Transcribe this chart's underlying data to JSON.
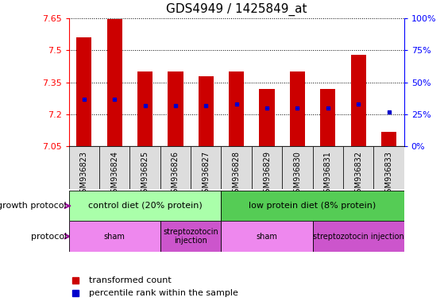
{
  "title": "GDS4949 / 1425849_at",
  "samples": [
    "GSM936823",
    "GSM936824",
    "GSM936825",
    "GSM936826",
    "GSM936827",
    "GSM936828",
    "GSM936829",
    "GSM936830",
    "GSM936831",
    "GSM936832",
    "GSM936833"
  ],
  "bar_top": [
    7.56,
    7.645,
    7.4,
    7.4,
    7.38,
    7.4,
    7.32,
    7.4,
    7.32,
    7.48,
    7.12
  ],
  "bar_bottom": 7.05,
  "blue_marker": [
    7.27,
    7.27,
    7.24,
    7.24,
    7.24,
    7.25,
    7.23,
    7.23,
    7.23,
    7.25,
    7.21
  ],
  "ylim": [
    7.05,
    7.65
  ],
  "yticks": [
    7.05,
    7.2,
    7.35,
    7.5,
    7.65
  ],
  "right_yticks": [
    0,
    25,
    50,
    75,
    100
  ],
  "bar_color": "#cc0000",
  "blue_color": "#0000cc",
  "background_color": "#ffffff",
  "growth_protocol_label": "growth protocol",
  "protocol_label": "protocol",
  "growth_groups": [
    {
      "label": "control diet (20% protein)",
      "start": 0,
      "end": 5,
      "color": "#aaffaa"
    },
    {
      "label": "low protein diet (8% protein)",
      "start": 5,
      "end": 11,
      "color": "#55cc55"
    }
  ],
  "protocol_groups": [
    {
      "label": "sham",
      "start": 0,
      "end": 3,
      "color": "#ee88ee"
    },
    {
      "label": "streptozotocin\ninjection",
      "start": 3,
      "end": 5,
      "color": "#cc55cc"
    },
    {
      "label": "sham",
      "start": 5,
      "end": 8,
      "color": "#ee88ee"
    },
    {
      "label": "streptozotocin injection",
      "start": 8,
      "end": 11,
      "color": "#cc55cc"
    }
  ],
  "legend_label_1": "transformed count",
  "legend_label_2": "percentile rank within the sample",
  "title_fontsize": 11,
  "tick_fontsize": 8,
  "sample_fontsize": 7,
  "annotation_fontsize": 8,
  "group_label_fontsize": 8,
  "protocol_label_fontsize": 7
}
